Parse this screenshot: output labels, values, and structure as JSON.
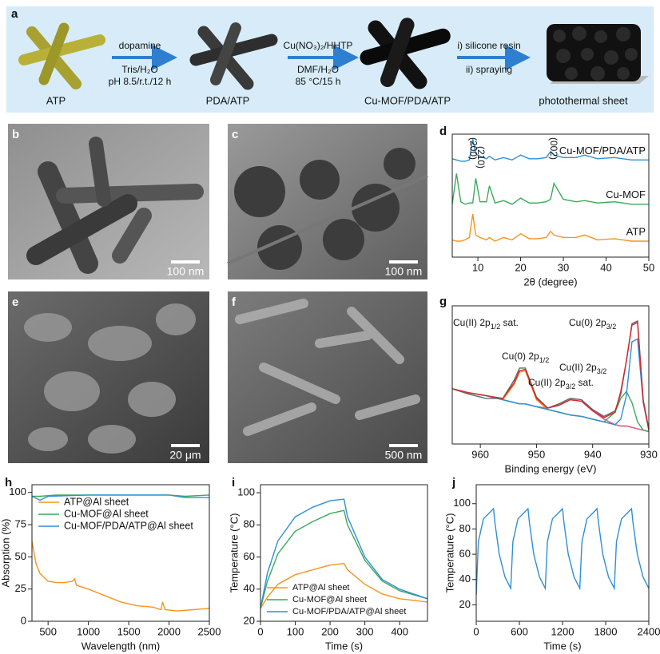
{
  "scheme": {
    "label": "a",
    "stages": [
      "ATP",
      "PDA/ATP",
      "Cu-MOF/PDA/ATP",
      "photothermal sheet"
    ],
    "steps": [
      {
        "above": [
          "dopamine"
        ],
        "below": [
          "Tris/H₂O",
          "pH 8.5/r.t./12 h"
        ]
      },
      {
        "above": [
          "Cu(NO₃)₂/HHTP"
        ],
        "below": [
          "DMF/H₂O",
          "85 °C/15 h"
        ]
      },
      {
        "above": [
          "i) silicone resin"
        ],
        "below": [
          "ii) spraying"
        ]
      }
    ]
  },
  "micrographs": [
    {
      "label": "b",
      "scale": "100 nm"
    },
    {
      "label": "c",
      "scale": "100 nm"
    },
    {
      "label": "e",
      "scale": "20 μm"
    },
    {
      "label": "f",
      "scale": "500 nm"
    }
  ],
  "chart_data": [
    {
      "type": "line",
      "label": "d",
      "x_label": "2θ (degree)",
      "xlim": [
        4,
        50
      ],
      "xticks": [
        10,
        20,
        30,
        40,
        50
      ],
      "ylim": [
        0,
        10
      ],
      "legend": "inline",
      "annotations": [
        "(200)",
        "(210)",
        "(002)"
      ],
      "x": [
        4,
        5,
        6,
        7,
        8,
        8.8,
        9.5,
        10.5,
        12,
        12.7,
        14,
        16,
        18,
        20,
        22,
        24,
        26,
        27,
        27.8,
        30,
        33,
        35,
        38,
        42,
        46,
        50
      ],
      "series": [
        {
          "name": "Cu-MOF/PDA/ATP",
          "color": "#2f8fd8",
          "values": [
            8.0,
            7.9,
            7.8,
            7.8,
            7.9,
            9.6,
            8.4,
            8.2,
            8.0,
            8.2,
            7.9,
            8.1,
            7.9,
            8.3,
            8.0,
            8.0,
            8.1,
            8.6,
            8.3,
            8.1,
            8.1,
            8.3,
            8.0,
            8.1,
            7.9,
            7.9
          ]
        },
        {
          "name": "Cu-MOF",
          "color": "#3aaa5c",
          "values": [
            4.3,
            6.8,
            4.5,
            4.3,
            4.4,
            4.4,
            6.4,
            4.5,
            4.5,
            5.8,
            4.4,
            4.6,
            4.3,
            4.8,
            4.4,
            4.4,
            4.5,
            4.7,
            6.0,
            4.7,
            4.5,
            4.6,
            4.4,
            4.5,
            4.3,
            4.3
          ]
        },
        {
          "name": "ATP",
          "color": "#f7941d",
          "values": [
            1.4,
            1.3,
            1.3,
            1.4,
            1.6,
            3.5,
            1.8,
            1.6,
            1.4,
            1.6,
            1.3,
            1.6,
            1.4,
            1.9,
            1.5,
            1.5,
            1.6,
            2.1,
            1.8,
            1.6,
            1.6,
            1.8,
            1.4,
            1.5,
            1.3,
            1.3
          ]
        }
      ]
    },
    {
      "type": "line",
      "label": "g",
      "x_label": "Binding energy (eV)",
      "xlim": [
        965,
        930
      ],
      "xticks": [
        960,
        950,
        940,
        930
      ],
      "ylim": [
        0,
        10
      ],
      "annotations": [
        {
          "text": "Cu(II) 2p",
          "sub": "1/2",
          "tail": " sat."
        },
        {
          "text": "Cu(0) 2p",
          "sub": "1/2",
          "tail": ""
        },
        {
          "text": "Cu(II) 2p",
          "sub": "3/2",
          "tail": " sat."
        },
        {
          "text": "Cu(II) 2p",
          "sub": "3/2",
          "tail": ""
        },
        {
          "text": "Cu(0) 2p",
          "sub": "3/2",
          "tail": ""
        }
      ],
      "x": [
        965,
        962,
        959,
        956,
        954,
        953,
        952,
        950,
        948,
        946,
        944,
        942,
        940,
        938,
        936,
        935,
        934,
        933,
        932,
        931,
        930
      ],
      "series": [
        {
          "color": "#9acd32",
          "values": [
            4.0,
            3.7,
            3.5,
            3.2,
            3.0,
            2.9,
            2.9,
            2.7,
            2.5,
            2.3,
            2.1,
            2.0,
            1.8,
            1.6,
            1.4,
            1.3,
            1.3,
            1.2,
            1.1,
            1.0,
            0.9
          ]
        },
        {
          "color": "#f7941d",
          "values": [
            4.0,
            3.7,
            3.5,
            3.2,
            4.3,
            5.2,
            5.3,
            3.2,
            2.5,
            2.3,
            2.1,
            2.0,
            1.8,
            1.6,
            1.4,
            1.3,
            1.3,
            1.2,
            1.1,
            1.0,
            0.9
          ]
        },
        {
          "color": "#e8559b",
          "values": [
            4.0,
            3.7,
            3.5,
            3.2,
            3.0,
            2.9,
            2.9,
            2.7,
            2.6,
            2.8,
            3.2,
            3.1,
            2.4,
            1.8,
            1.4,
            1.3,
            1.3,
            1.2,
            1.1,
            1.0,
            0.9
          ]
        },
        {
          "color": "#3aaa5c",
          "values": [
            4.0,
            3.7,
            3.5,
            3.2,
            3.0,
            2.9,
            2.9,
            2.7,
            2.5,
            2.3,
            2.1,
            2.0,
            1.8,
            1.6,
            2.3,
            3.3,
            3.8,
            3.0,
            1.6,
            1.0,
            0.9
          ]
        },
        {
          "color": "#2f8fd8",
          "values": [
            4.0,
            3.7,
            3.5,
            3.2,
            3.0,
            2.9,
            2.9,
            2.7,
            2.5,
            2.3,
            2.1,
            2.0,
            1.8,
            1.6,
            1.4,
            1.8,
            3.5,
            7.4,
            7.6,
            3.0,
            1.0
          ]
        },
        {
          "color": "#666666",
          "values": [
            4.0,
            3.6,
            3.3,
            3.3,
            4.6,
            5.5,
            5.5,
            3.4,
            2.6,
            2.9,
            3.3,
            3.2,
            2.5,
            2.0,
            2.4,
            3.6,
            6.0,
            8.7,
            8.9,
            3.2,
            1.1
          ]
        },
        {
          "color": "#d9262b",
          "values": [
            4.0,
            3.7,
            3.5,
            3.3,
            4.4,
            5.3,
            5.4,
            3.3,
            2.6,
            2.8,
            3.2,
            3.1,
            2.4,
            1.9,
            2.3,
            3.8,
            6.0,
            8.6,
            8.8,
            3.1,
            1.0
          ]
        }
      ]
    },
    {
      "type": "line",
      "label": "h",
      "x_label": "Wavelength (nm)",
      "y_label": "Absorption (%)",
      "xlim": [
        300,
        2500
      ],
      "xticks": [
        500,
        1000,
        1500,
        2000,
        2500
      ],
      "ylim": [
        0,
        106
      ],
      "yticks": [
        0,
        25,
        50,
        75,
        100
      ],
      "legend": "upper left",
      "series": [
        {
          "name": "ATP@Al sheet",
          "color": "#f7941d",
          "x": [
            300,
            350,
            400,
            500,
            600,
            700,
            800,
            830,
            850,
            1000,
            1200,
            1400,
            1600,
            1800,
            1900,
            1920,
            1950,
            2100,
            2300,
            2500
          ],
          "values": [
            62,
            45,
            37,
            31,
            30,
            30,
            31,
            33,
            28,
            25,
            20,
            15,
            12,
            11,
            9,
            15,
            9,
            8,
            9,
            10
          ]
        },
        {
          "name": "Cu-MOF@Al sheet",
          "color": "#3aaa5c",
          "x": [
            300,
            400,
            600,
            1000,
            1500,
            2000,
            2200,
            2500
          ],
          "values": [
            97,
            97,
            98,
            98,
            98,
            98,
            97,
            98
          ]
        },
        {
          "name": "Cu-MOF/PDA/ATP@Al sheet",
          "color": "#2f8fd8",
          "x": [
            300,
            400,
            500,
            1000,
            1500,
            2000,
            2200,
            2500
          ],
          "values": [
            97,
            94,
            97,
            98,
            98,
            98,
            96,
            96
          ]
        }
      ]
    },
    {
      "type": "line",
      "label": "i",
      "x_label": "Time (s)",
      "y_label": "Temperature (°C)",
      "xlim": [
        0,
        480
      ],
      "xticks": [
        0,
        100,
        200,
        300,
        400
      ],
      "ylim": [
        20,
        105
      ],
      "yticks": [
        20,
        40,
        60,
        80,
        100
      ],
      "legend": "lower left",
      "x": [
        0,
        20,
        50,
        100,
        150,
        200,
        240,
        250,
        300,
        350,
        400,
        480
      ],
      "series": [
        {
          "name": "ATP@Al sheet",
          "color": "#f7941d",
          "values": [
            28,
            35,
            43,
            49,
            52,
            55,
            56,
            52,
            43,
            37,
            34,
            32
          ]
        },
        {
          "name": "Cu-MOF@Al sheet",
          "color": "#3aaa5c",
          "values": [
            28,
            45,
            62,
            76,
            82,
            87,
            89,
            80,
            58,
            45,
            39,
            34
          ]
        },
        {
          "name": "Cu-MOF/PDA/ATP@Al sheet",
          "color": "#2f8fd8",
          "values": [
            28,
            50,
            70,
            85,
            91,
            95,
            96,
            85,
            60,
            46,
            40,
            34
          ]
        }
      ]
    },
    {
      "type": "line",
      "label": "j",
      "x_label": "Time (s)",
      "y_label": "Temperature (°C)",
      "xlim": [
        0,
        2400
      ],
      "xticks": [
        0,
        600,
        1200,
        1800,
        2400
      ],
      "ylim": [
        7,
        115
      ],
      "yticks": [
        20,
        40,
        60,
        80,
        100
      ],
      "x": [
        0,
        30,
        100,
        240,
        260,
        320,
        400,
        480,
        510,
        580,
        720,
        740,
        800,
        880,
        960,
        990,
        1060,
        1200,
        1220,
        1280,
        1360,
        1440,
        1470,
        1540,
        1680,
        1700,
        1760,
        1840,
        1920,
        1950,
        2020,
        2160,
        2180,
        2240,
        2320,
        2400
      ],
      "series": [
        {
          "color": "#2f8fd8",
          "values": [
            28,
            70,
            88,
            96,
            85,
            60,
            42,
            33,
            70,
            88,
            96,
            85,
            60,
            42,
            33,
            70,
            88,
            96,
            85,
            60,
            42,
            33,
            70,
            88,
            96,
            85,
            60,
            42,
            33,
            70,
            88,
            96,
            85,
            60,
            42,
            33
          ]
        }
      ]
    }
  ]
}
